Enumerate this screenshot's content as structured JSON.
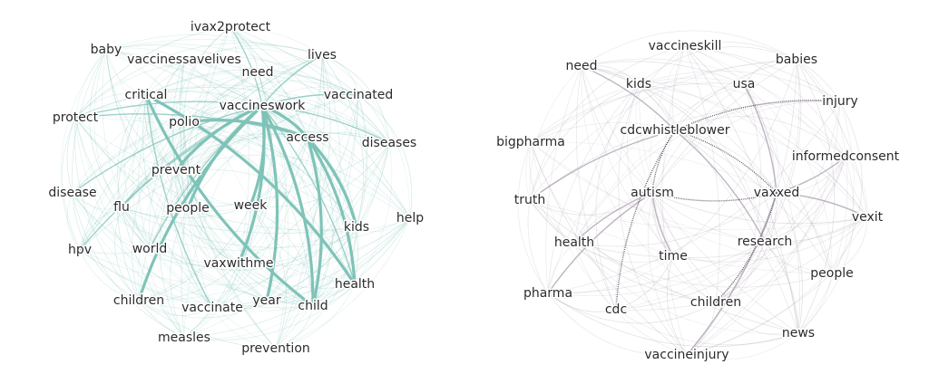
{
  "networks": [
    {
      "id": "pro",
      "edge_color": "#7fc3b8",
      "nodes": [
        "ivax2protect",
        "baby",
        "vaccinessavelives",
        "lives",
        "need",
        "vaccinated",
        "critical",
        "vaccineswork",
        "protect",
        "polio",
        "access",
        "diseases",
        "prevent",
        "disease",
        "flu",
        "people",
        "week",
        "help",
        "kids",
        "hpv",
        "world",
        "vaxwithme",
        "health",
        "children",
        "year",
        "vaccinate",
        "child",
        "measles",
        "prevention"
      ],
      "strong_edges": [
        [
          "critical",
          "health"
        ],
        [
          "critical",
          "child"
        ],
        [
          "vaccineswork",
          "access"
        ],
        [
          "vaccineswork",
          "vaxwithme"
        ],
        [
          "vaccineswork",
          "people"
        ],
        [
          "vaccineswork",
          "week"
        ],
        [
          "vaccineswork",
          "prevent"
        ],
        [
          "vaccineswork",
          "year"
        ],
        [
          "access",
          "child"
        ],
        [
          "access",
          "health"
        ],
        [
          "access",
          "kids"
        ],
        [
          "polio",
          "access"
        ],
        [
          "vaccineswork",
          "child"
        ],
        [
          "vaccineswork",
          "children"
        ]
      ],
      "medium_edges": [
        [
          "vaccineswork",
          "disease"
        ],
        [
          "vaccineswork",
          "hpv"
        ],
        [
          "vaccineswork",
          "protect"
        ],
        [
          "vaccineswork",
          "flu"
        ],
        [
          "vaccineswork",
          "world"
        ],
        [
          "vaccineswork",
          "vaccinated"
        ],
        [
          "vaccineswork",
          "lives"
        ],
        [
          "vaccineswork",
          "diseases"
        ],
        [
          "vaccineswork",
          "ivax2protect"
        ],
        [
          "vaccineswork",
          "health"
        ],
        [
          "critical",
          "vaccinate"
        ],
        [
          "protect",
          "access"
        ]
      ]
    },
    {
      "id": "anti",
      "edge_color": "#a89cab",
      "nodes": [
        "vaccineskill",
        "need",
        "babies",
        "kids",
        "usa",
        "injury",
        "cdcwhistleblower",
        "bigpharma",
        "informedconsent",
        "autism",
        "vaxxed",
        "truth",
        "vexit",
        "health",
        "research",
        "time",
        "people",
        "pharma",
        "children",
        "cdc",
        "news",
        "vaccineinjury"
      ],
      "strong_edges": [
        [
          "cdcwhistleblower",
          "autism"
        ],
        [
          "cdcwhistleblower",
          "vaxxed"
        ],
        [
          "autism",
          "vaxxed"
        ],
        [
          "cdcwhistleblower",
          "cdc"
        ],
        [
          "cdcwhistleblower",
          "injury"
        ],
        [
          "vaxxed",
          "children"
        ]
      ],
      "medium_edges": [
        [
          "cdcwhistleblower",
          "research"
        ],
        [
          "autism",
          "health"
        ],
        [
          "autism",
          "time"
        ],
        [
          "vaxxed",
          "vexit"
        ],
        [
          "vaxxed",
          "usa"
        ],
        [
          "cdcwhistleblower",
          "need"
        ],
        [
          "cdcwhistleblower",
          "truth"
        ],
        [
          "autism",
          "pharma"
        ],
        [
          "vaxxed",
          "informedconsent"
        ],
        [
          "vaxxed",
          "vaccineinjury"
        ]
      ]
    }
  ]
}
